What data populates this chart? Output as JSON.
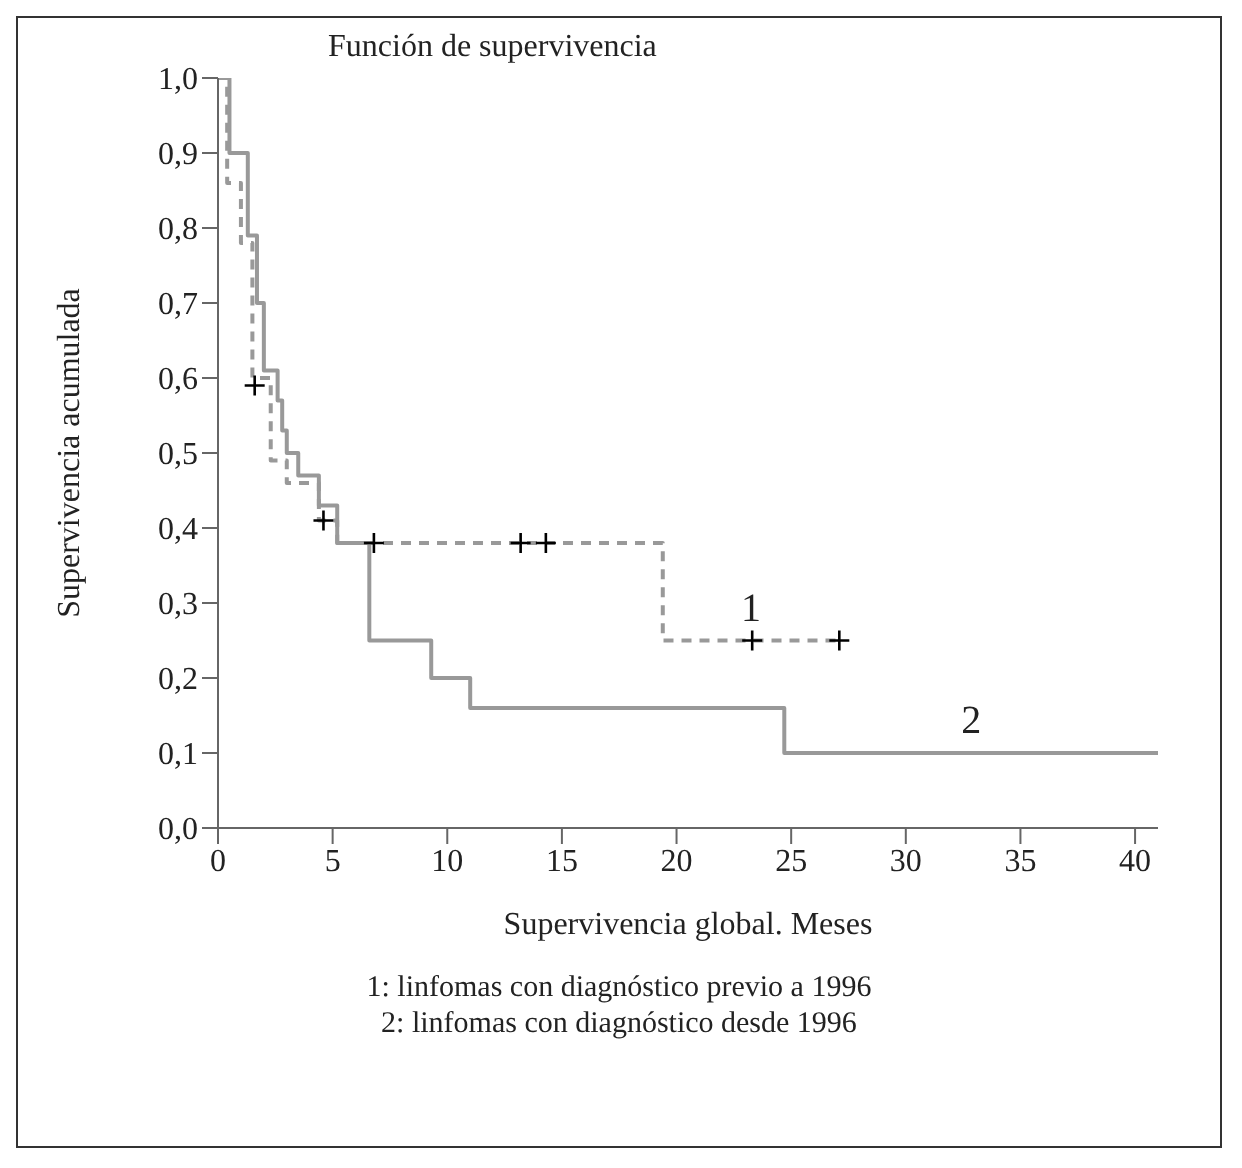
{
  "chart_data": {
    "type": "step",
    "title": "Función de supervivencia",
    "xlabel": "Supervivencia global. Meses",
    "ylabel": "Supervivencia acumulada",
    "series": [
      {
        "name": "1",
        "color": "#999999",
        "line_style": "dashed",
        "x": [
          0,
          0.4,
          1.0,
          1.5,
          2.3,
          3.0,
          4.4,
          5.2,
          19.4,
          27.1
        ],
        "values": [
          1.0,
          0.86,
          0.78,
          0.6,
          0.49,
          0.46,
          0.41,
          0.38,
          0.25,
          0.25
        ]
      },
      {
        "name": "2",
        "color": "#999999",
        "line_style": "solid",
        "x": [
          0,
          0.5,
          1.3,
          1.7,
          2.0,
          2.6,
          2.8,
          3.0,
          3.5,
          4.4,
          5.2,
          6.6,
          9.3,
          11.0,
          24.7,
          41
        ],
        "values": [
          1.0,
          0.9,
          0.79,
          0.7,
          0.61,
          0.57,
          0.53,
          0.5,
          0.47,
          0.43,
          0.38,
          0.25,
          0.2,
          0.16,
          0.1,
          0.1
        ]
      },
      {
        "type": "scatter",
        "color": "#000000",
        "marker": "cross",
        "x": [
          1.6,
          4.6,
          6.8,
          13.2,
          14.3,
          23.3,
          27.1
        ],
        "values": [
          0.59,
          0.41,
          0.38,
          0.38,
          0.38,
          0.25,
          0.25
        ]
      }
    ],
    "xlim": [
      0,
      41
    ],
    "xticks": [
      0,
      5,
      10,
      15,
      20,
      25,
      30,
      35,
      40
    ],
    "ylim": [
      0,
      1.0
    ],
    "yticks": [
      {
        "value": 0,
        "label": "0,0"
      },
      {
        "value": 0.1,
        "label": "0,1"
      },
      {
        "value": 0.2,
        "label": "0,2"
      },
      {
        "value": 0.3,
        "label": "0,3"
      },
      {
        "value": 0.4,
        "label": "0,4"
      },
      {
        "value": 0.5,
        "label": "0,5"
      },
      {
        "value": 0.6,
        "label": "0,6"
      },
      {
        "value": 0.7,
        "label": "0,7"
      },
      {
        "value": 0.8,
        "label": "0,8"
      },
      {
        "value": 0.9,
        "label": "0,9"
      },
      {
        "value": 1.0,
        "label": "1,0"
      }
    ],
    "grid": false,
    "legend": false,
    "annotations": [
      "1: linfomas con diagnóstico previo a 1996",
      "2: linfomas con diagnóstico desde 1996"
    ]
  }
}
